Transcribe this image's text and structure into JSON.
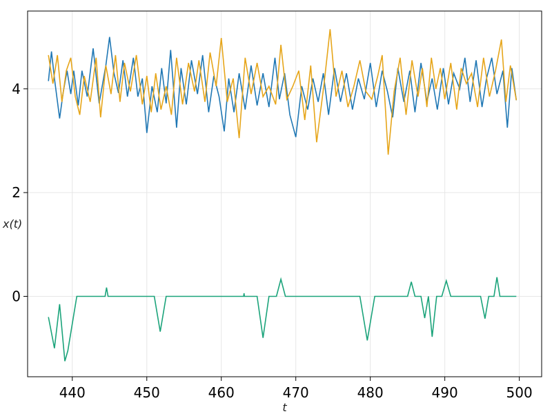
{
  "chart_data": {
    "type": "line",
    "xlabel": "t",
    "ylabel": "x(t)",
    "xlim": [
      434,
      503
    ],
    "ylim": [
      -1.55,
      5.5
    ],
    "x_ticks": [
      440,
      450,
      460,
      470,
      480,
      490,
      500
    ],
    "y_ticks": [
      0,
      2,
      4
    ],
    "grid": true,
    "legend": "none",
    "colors": [
      "#1f77b4",
      "#e6a519",
      "#1aa37a"
    ],
    "series": [
      {
        "color": "#1f77b4",
        "x": [
          436.8,
          437.2,
          437.6,
          438.3,
          438.8,
          439.3,
          439.8,
          440.2,
          440.8,
          441.3,
          442.0,
          442.8,
          443.6,
          444.5,
          445.0,
          445.6,
          446.2,
          446.8,
          447.4,
          448.2,
          448.8,
          449.4,
          450.0,
          450.7,
          451.4,
          452.0,
          452.6,
          453.2,
          454.0,
          454.6,
          455.3,
          456.0,
          456.8,
          457.5,
          458.3,
          459.0,
          459.7,
          460.4,
          461.0,
          461.7,
          462.4,
          463.2,
          464.0,
          464.8,
          465.6,
          466.4,
          467.2,
          467.8,
          468.5,
          469.2,
          470.0,
          470.8,
          471.6,
          472.3,
          473.0,
          473.7,
          474.4,
          475.2,
          476.0,
          476.8,
          477.6,
          478.4,
          479.2,
          480.0,
          480.8,
          481.6,
          482.3,
          483.0,
          483.7,
          484.5,
          485.3,
          486.0,
          486.8,
          487.6,
          488.3,
          489.0,
          489.8,
          490.5,
          491.2,
          492.0,
          492.7,
          493.4,
          494.2,
          495.0,
          495.6,
          496.3,
          497.0,
          497.8,
          498.4,
          499.0,
          499.6
        ],
        "values": [
          4.15,
          4.72,
          4.2,
          3.43,
          3.95,
          4.35,
          3.9,
          4.35,
          3.68,
          4.35,
          3.85,
          4.78,
          3.72,
          4.45,
          5.0,
          4.3,
          3.92,
          4.55,
          3.85,
          4.6,
          3.85,
          4.2,
          3.15,
          4.05,
          3.55,
          4.4,
          3.72,
          4.75,
          3.25,
          4.4,
          3.7,
          4.55,
          3.9,
          4.65,
          3.55,
          4.25,
          3.85,
          3.18,
          4.2,
          3.55,
          4.3,
          3.6,
          4.45,
          3.68,
          4.3,
          3.65,
          4.6,
          3.8,
          4.3,
          3.5,
          3.07,
          4.05,
          3.6,
          4.2,
          3.75,
          4.3,
          3.5,
          4.4,
          3.75,
          4.3,
          3.6,
          4.2,
          3.8,
          4.5,
          3.65,
          4.35,
          3.95,
          3.45,
          4.4,
          3.75,
          4.35,
          3.55,
          4.5,
          3.75,
          4.2,
          3.6,
          4.4,
          3.7,
          4.3,
          4.0,
          4.6,
          3.75,
          4.55,
          3.65,
          4.2,
          4.6,
          3.9,
          4.35,
          3.25,
          4.4,
          3.78
        ]
      },
      {
        "color": "#e6a519",
        "x": [
          436.8,
          437.4,
          438.0,
          438.6,
          439.2,
          439.8,
          440.4,
          441.0,
          441.6,
          442.4,
          443.2,
          443.8,
          444.5,
          445.2,
          445.8,
          446.4,
          447.0,
          447.8,
          448.6,
          449.4,
          450.0,
          450.6,
          451.2,
          451.9,
          452.6,
          453.3,
          454.0,
          454.8,
          455.6,
          456.4,
          457.0,
          457.8,
          458.5,
          459.3,
          460.0,
          460.8,
          461.6,
          462.4,
          463.2,
          464.0,
          464.8,
          465.6,
          466.4,
          467.3,
          468.0,
          468.8,
          469.6,
          470.4,
          471.2,
          472.0,
          472.8,
          473.8,
          474.6,
          475.4,
          476.2,
          477.0,
          477.8,
          478.6,
          479.4,
          480.2,
          481.0,
          481.6,
          482.4,
          483.2,
          484.0,
          484.8,
          485.6,
          486.4,
          487.0,
          487.6,
          488.2,
          488.8,
          489.4,
          490.0,
          490.8,
          491.6,
          492.2,
          492.9,
          493.6,
          494.4,
          495.2,
          496.0,
          496.8,
          497.6,
          498.2,
          498.8,
          499.6
        ],
        "values": [
          4.65,
          4.1,
          4.65,
          3.75,
          4.35,
          4.6,
          3.85,
          3.5,
          4.25,
          3.75,
          4.6,
          3.45,
          4.45,
          3.9,
          4.65,
          3.75,
          4.5,
          3.95,
          4.65,
          3.7,
          4.25,
          3.55,
          4.3,
          3.6,
          4.05,
          3.5,
          4.6,
          3.7,
          4.5,
          3.95,
          4.55,
          3.75,
          4.7,
          4.05,
          4.98,
          3.75,
          4.2,
          3.05,
          4.6,
          3.9,
          4.5,
          3.85,
          4.05,
          3.7,
          4.85,
          3.8,
          4.05,
          4.35,
          3.4,
          4.45,
          2.97,
          4.1,
          5.15,
          3.85,
          4.35,
          3.65,
          4.05,
          4.55,
          3.95,
          3.8,
          4.25,
          4.65,
          2.73,
          3.95,
          4.6,
          3.5,
          4.55,
          3.85,
          4.4,
          3.65,
          4.6,
          4.0,
          4.4,
          3.8,
          4.5,
          3.6,
          4.4,
          4.1,
          4.3,
          3.65,
          4.6,
          3.85,
          4.35,
          4.95,
          3.75,
          4.45,
          3.78
        ]
      },
      {
        "color": "#1aa37a",
        "x": [
          436.8,
          437.6,
          438.3,
          439.0,
          439.4,
          440.6,
          444.4,
          444.6,
          444.8,
          451.0,
          451.8,
          452.6,
          463.0,
          463.05,
          463.1,
          464.8,
          465.6,
          466.4,
          467.4,
          468.0,
          468.6,
          478.6,
          479.6,
          480.6,
          485.0,
          485.5,
          486.0,
          486.8,
          487.3,
          487.8,
          488.3,
          488.9,
          489.6,
          490.2,
          490.8,
          494.8,
          495.4,
          495.9,
          496.6,
          497.0,
          497.4,
          498.0,
          499.6
        ],
        "values": [
          -0.4,
          -1.0,
          -0.15,
          -1.25,
          -1.05,
          0.0,
          0.0,
          0.17,
          0.0,
          0.0,
          -0.68,
          0.0,
          0.0,
          0.06,
          0.0,
          0.0,
          -0.8,
          0.0,
          0.0,
          0.33,
          0.0,
          0.0,
          -0.85,
          0.0,
          0.0,
          0.28,
          0.0,
          0.0,
          -0.42,
          0.0,
          -0.78,
          0.0,
          0.0,
          0.3,
          0.0,
          0.0,
          -0.43,
          0.0,
          0.0,
          0.37,
          0.0,
          0.0,
          0.0
        ]
      }
    ]
  }
}
